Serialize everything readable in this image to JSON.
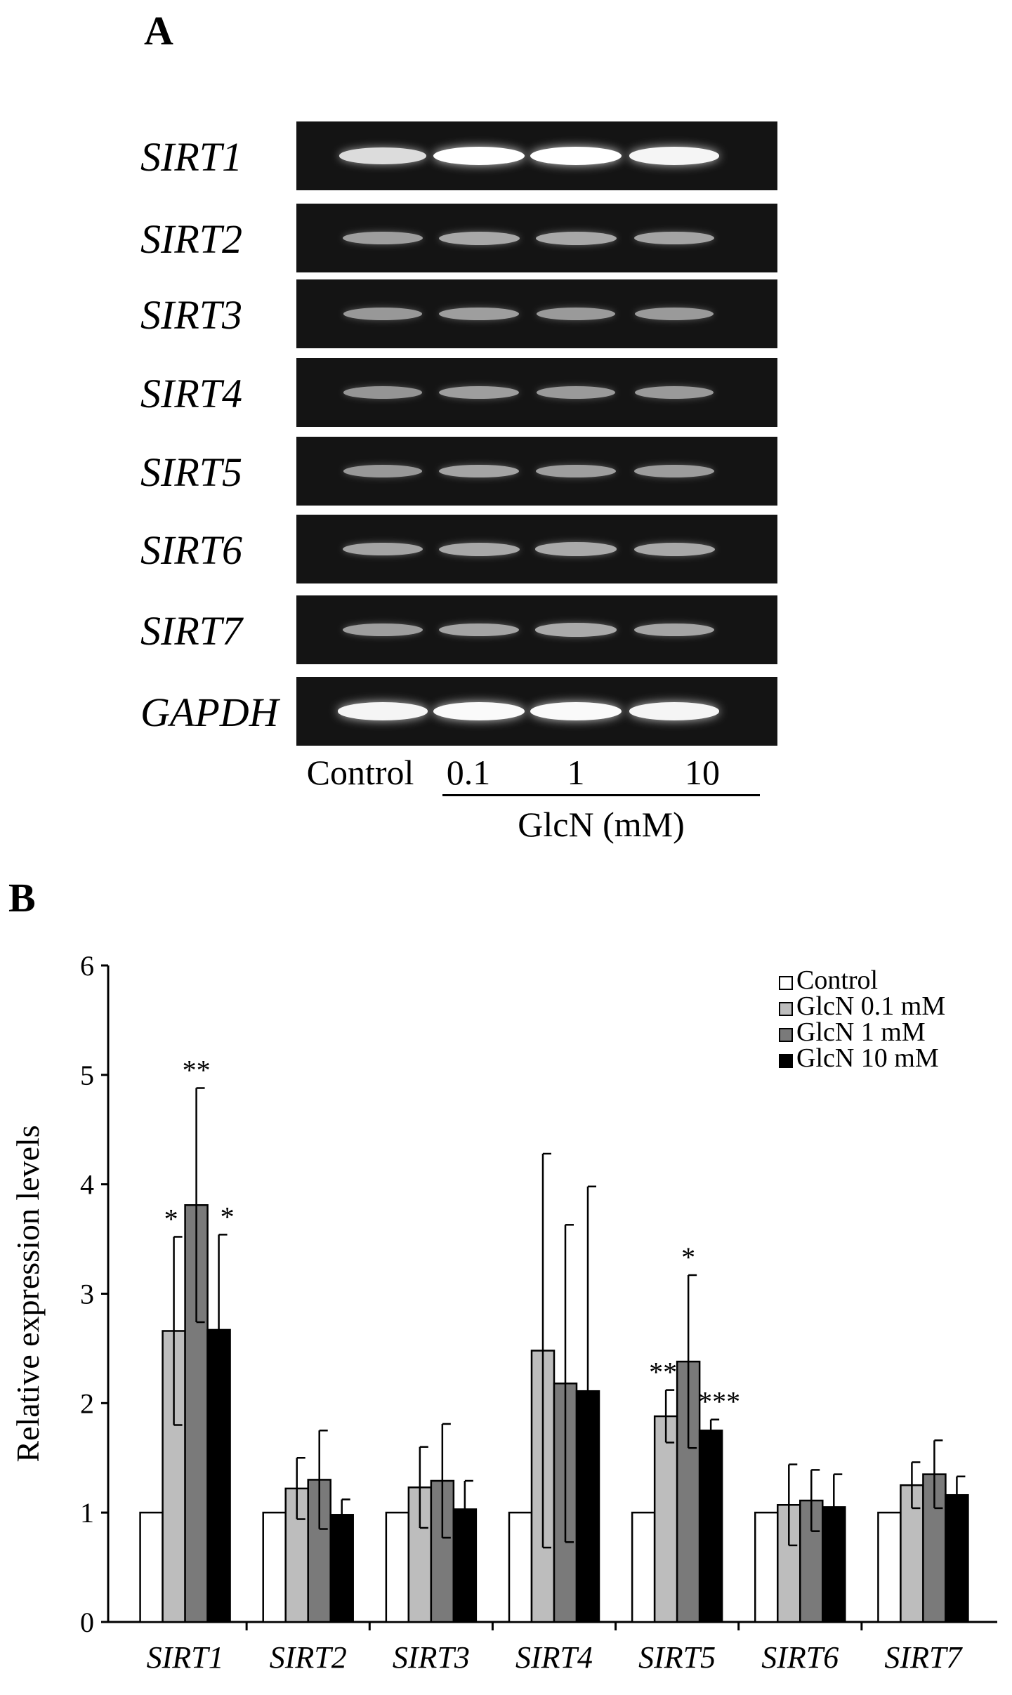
{
  "panel_a": {
    "letter": "A",
    "rows": [
      {
        "gene": "SIRT1",
        "bands": [
          0.8,
          1.0,
          1.0,
          0.95
        ]
      },
      {
        "gene": "SIRT2",
        "bands": [
          0.45,
          0.5,
          0.5,
          0.48
        ]
      },
      {
        "gene": "SIRT3",
        "bands": [
          0.42,
          0.45,
          0.43,
          0.43
        ]
      },
      {
        "gene": "SIRT4",
        "bands": [
          0.4,
          0.45,
          0.43,
          0.43
        ]
      },
      {
        "gene": "SIRT5",
        "bands": [
          0.42,
          0.48,
          0.46,
          0.44
        ]
      },
      {
        "gene": "SIRT6",
        "bands": [
          0.48,
          0.5,
          0.52,
          0.5
        ]
      },
      {
        "gene": "SIRT7",
        "bands": [
          0.45,
          0.48,
          0.52,
          0.48
        ]
      },
      {
        "gene": "GAPDH",
        "bands": [
          0.95,
          0.98,
          0.98,
          0.95
        ]
      }
    ],
    "lanes": [
      "Control",
      "0.1",
      "1",
      "10"
    ],
    "group_label": "GlcN (mM)",
    "band_color": "#ffffff",
    "gel_background": "#141414"
  },
  "panel_b": {
    "letter": "B",
    "chart_data": {
      "type": "bar",
      "categories": [
        "SIRT1",
        "SIRT2",
        "SIRT3",
        "SIRT4",
        "SIRT5",
        "SIRT6",
        "SIRT7"
      ],
      "ylabel": "Relative expression levels",
      "ylim": [
        0,
        6
      ],
      "yticks": [
        "0",
        "1",
        "2",
        "3",
        "4",
        "5",
        "6"
      ],
      "legend_position": "top-right",
      "series": [
        {
          "name": "Control",
          "color": "#ffffff",
          "values": [
            1,
            1,
            1,
            1,
            1,
            1,
            1
          ],
          "errors": [
            0,
            0,
            0,
            0,
            0,
            0,
            0
          ],
          "marks": [
            "",
            "",
            "",
            "",
            "",
            "",
            ""
          ]
        },
        {
          "name": "GlcN 0.1 mM",
          "color": "#bdbdbd",
          "values": [
            2.66,
            1.22,
            1.23,
            2.48,
            1.88,
            1.07,
            1.25
          ],
          "errors": [
            0.86,
            0.28,
            0.37,
            1.8,
            0.24,
            0.37,
            0.21
          ],
          "marks": [
            "*",
            "",
            "",
            "",
            "**",
            "",
            ""
          ]
        },
        {
          "name": "GlcN 1 mM",
          "color": "#7a7a7a",
          "values": [
            3.81,
            1.3,
            1.29,
            2.18,
            2.38,
            1.11,
            1.35
          ],
          "errors": [
            1.07,
            0.45,
            0.52,
            1.45,
            0.79,
            0.28,
            0.31
          ],
          "marks": [
            "**",
            "",
            "",
            "",
            "*",
            "",
            ""
          ]
        },
        {
          "name": "GlcN 10 mM",
          "color": "#000000",
          "values": [
            2.67,
            0.98,
            1.03,
            2.11,
            1.75,
            1.05,
            1.16
          ],
          "errors": [
            0.87,
            0.14,
            0.26,
            1.87,
            0.1,
            0.3,
            0.17
          ],
          "marks": [
            "*",
            "",
            "",
            "",
            "***",
            "",
            ""
          ]
        }
      ]
    }
  }
}
